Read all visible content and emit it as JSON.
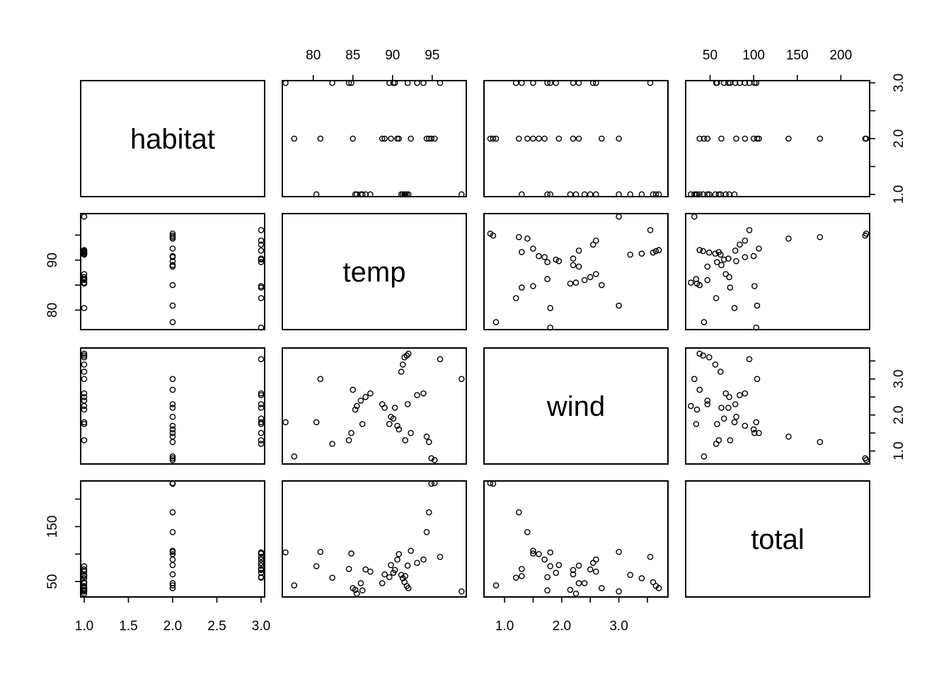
{
  "chart_data": {
    "type": "scatter",
    "variables": [
      "habitat",
      "temp",
      "wind",
      "total"
    ],
    "axes": {
      "habitat": {
        "ticks": [
          1.0,
          1.5,
          2.0,
          2.5,
          3.0
        ],
        "labels": [
          "1.0",
          "1.5",
          "2.0",
          "2.5",
          "3.0"
        ],
        "range": [
          0.96,
          3.04
        ],
        "side_labels": [
          "1.0",
          "2.0",
          "3.0"
        ],
        "side_ticks": [
          1.0,
          1.5,
          2.0,
          2.5,
          3.0
        ]
      },
      "temp": {
        "ticks": [
          80,
          85,
          90,
          95
        ],
        "labels": [
          "80",
          "85",
          "90",
          "95"
        ],
        "range": [
          76.1,
          99.3
        ],
        "side_ticks": [
          80,
          85,
          90,
          95
        ],
        "side_labels": [
          "80",
          "90"
        ]
      },
      "wind": {
        "ticks": [
          1.0,
          1.5,
          2.0,
          2.5,
          3.0,
          3.5
        ],
        "labels": [
          "1.0",
          "2.0",
          "3.0"
        ],
        "label_values": [
          1.0,
          2.0,
          3.0
        ],
        "range": [
          0.64,
          3.86
        ]
      },
      "total": {
        "ticks": [
          50,
          100,
          150,
          200
        ],
        "labels": [
          "50",
          "100",
          "150",
          "200"
        ],
        "range": [
          22,
          233
        ],
        "side_ticks": [
          50,
          100,
          150,
          200
        ],
        "side_labels": [
          "50",
          "150"
        ]
      }
    },
    "points": [
      {
        "habitat": 1,
        "temp": 98.7,
        "wind": 3.0,
        "total": 32
      },
      {
        "habitat": 1,
        "temp": 92.0,
        "wind": 3.7,
        "total": 38
      },
      {
        "habitat": 1,
        "temp": 91.8,
        "wind": 3.65,
        "total": 42
      },
      {
        "habitat": 1,
        "temp": 91.5,
        "wind": 3.6,
        "total": 49
      },
      {
        "habitat": 1,
        "temp": 91.3,
        "wind": 3.4,
        "total": 56
      },
      {
        "habitat": 1,
        "temp": 91.1,
        "wind": 3.2,
        "total": 62
      },
      {
        "habitat": 1,
        "temp": 87.2,
        "wind": 2.6,
        "total": 68
      },
      {
        "habitat": 1,
        "temp": 86.6,
        "wind": 2.5,
        "total": 72
      },
      {
        "habitat": 1,
        "temp": 86.0,
        "wind": 2.4,
        "total": 47
      },
      {
        "habitat": 1,
        "temp": 85.5,
        "wind": 2.25,
        "total": 28
      },
      {
        "habitat": 1,
        "temp": 85.3,
        "wind": 2.15,
        "total": 35
      },
      {
        "habitat": 1,
        "temp": 80.4,
        "wind": 1.8,
        "total": 78
      },
      {
        "habitat": 1,
        "temp": 86.2,
        "wind": 1.75,
        "total": 34
      },
      {
        "habitat": 1,
        "temp": 91.6,
        "wind": 1.3,
        "total": 60
      },
      {
        "habitat": 2,
        "temp": 95.3,
        "wind": 0.75,
        "total": 229
      },
      {
        "habitat": 2,
        "temp": 94.9,
        "wind": 0.8,
        "total": 228
      },
      {
        "habitat": 2,
        "temp": 94.6,
        "wind": 1.25,
        "total": 176
      },
      {
        "habitat": 2,
        "temp": 94.3,
        "wind": 1.4,
        "total": 140
      },
      {
        "habitat": 2,
        "temp": 92.3,
        "wind": 1.5,
        "total": 106
      },
      {
        "habitat": 2,
        "temp": 90.8,
        "wind": 1.6,
        "total": 100
      },
      {
        "habitat": 2,
        "temp": 90.6,
        "wind": 1.7,
        "total": 90
      },
      {
        "habitat": 2,
        "temp": 89.8,
        "wind": 1.95,
        "total": 80
      },
      {
        "habitat": 2,
        "temp": 89.0,
        "wind": 2.2,
        "total": 63
      },
      {
        "habitat": 2,
        "temp": 88.7,
        "wind": 2.3,
        "total": 47
      },
      {
        "habitat": 2,
        "temp": 85.0,
        "wind": 2.7,
        "total": 38
      },
      {
        "habitat": 2,
        "temp": 80.9,
        "wind": 3.0,
        "total": 104
      },
      {
        "habitat": 2,
        "temp": 77.6,
        "wind": 0.85,
        "total": 43
      },
      {
        "habitat": 3,
        "temp": 96.0,
        "wind": 3.55,
        "total": 95
      },
      {
        "habitat": 3,
        "temp": 93.9,
        "wind": 2.6,
        "total": 90
      },
      {
        "habitat": 3,
        "temp": 93.1,
        "wind": 2.55,
        "total": 84
      },
      {
        "habitat": 3,
        "temp": 91.9,
        "wind": 2.3,
        "total": 79
      },
      {
        "habitat": 3,
        "temp": 90.3,
        "wind": 2.2,
        "total": 71
      },
      {
        "habitat": 3,
        "temp": 90.1,
        "wind": 1.9,
        "total": 66
      },
      {
        "habitat": 3,
        "temp": 89.6,
        "wind": 1.75,
        "total": 58
      },
      {
        "habitat": 3,
        "temp": 84.8,
        "wind": 1.5,
        "total": 101
      },
      {
        "habitat": 3,
        "temp": 84.5,
        "wind": 1.3,
        "total": 73
      },
      {
        "habitat": 3,
        "temp": 82.4,
        "wind": 1.2,
        "total": 57
      },
      {
        "habitat": 3,
        "temp": 76.5,
        "wind": 1.8,
        "total": 103
      }
    ]
  }
}
